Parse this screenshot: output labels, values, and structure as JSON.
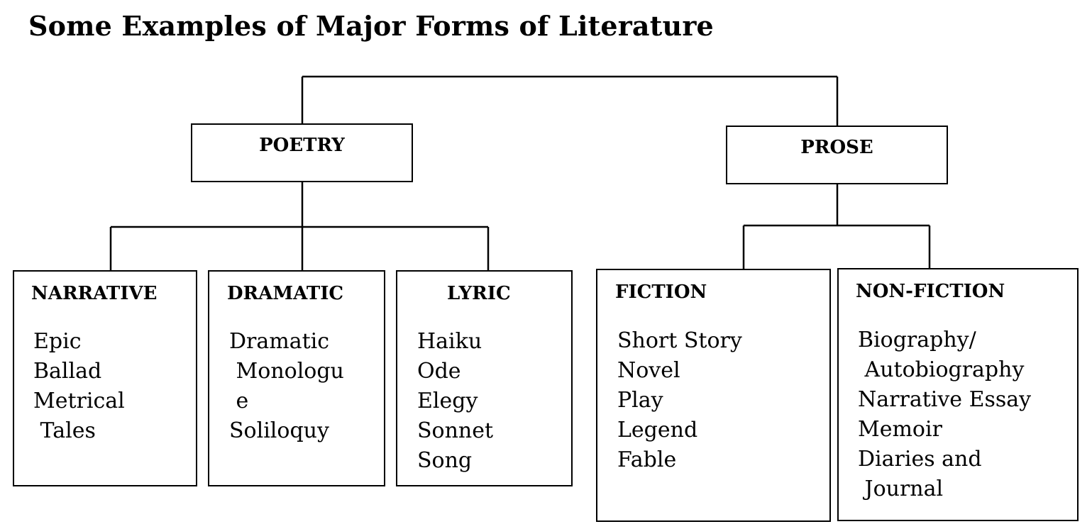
{
  "title": "Some Examples of Major Forms of Literature",
  "poetry": {
    "label": "POETRY",
    "children": [
      {
        "label": "NARRATIVE",
        "items": [
          "Epic",
          "Ballad",
          "Metrical",
          " Tales"
        ]
      },
      {
        "label": "DRAMATIC",
        "items": [
          "Dramatic",
          " Monologu",
          " e",
          "Soliloquy"
        ]
      },
      {
        "label": "LYRIC",
        "items": [
          "Haiku",
          "Ode",
          "Elegy",
          "Sonnet",
          "Song"
        ]
      }
    ]
  },
  "prose": {
    "label": "PROSE",
    "children": [
      {
        "label": "FICTION",
        "items": [
          "Short Story",
          "Novel",
          "Play",
          "Legend",
          "Fable"
        ]
      },
      {
        "label": "NON-FICTION",
        "items": [
          "Biography/",
          " Autobiography",
          "Narrative Essay",
          "Memoir",
          "Diaries and",
          " Journal"
        ]
      }
    ]
  }
}
